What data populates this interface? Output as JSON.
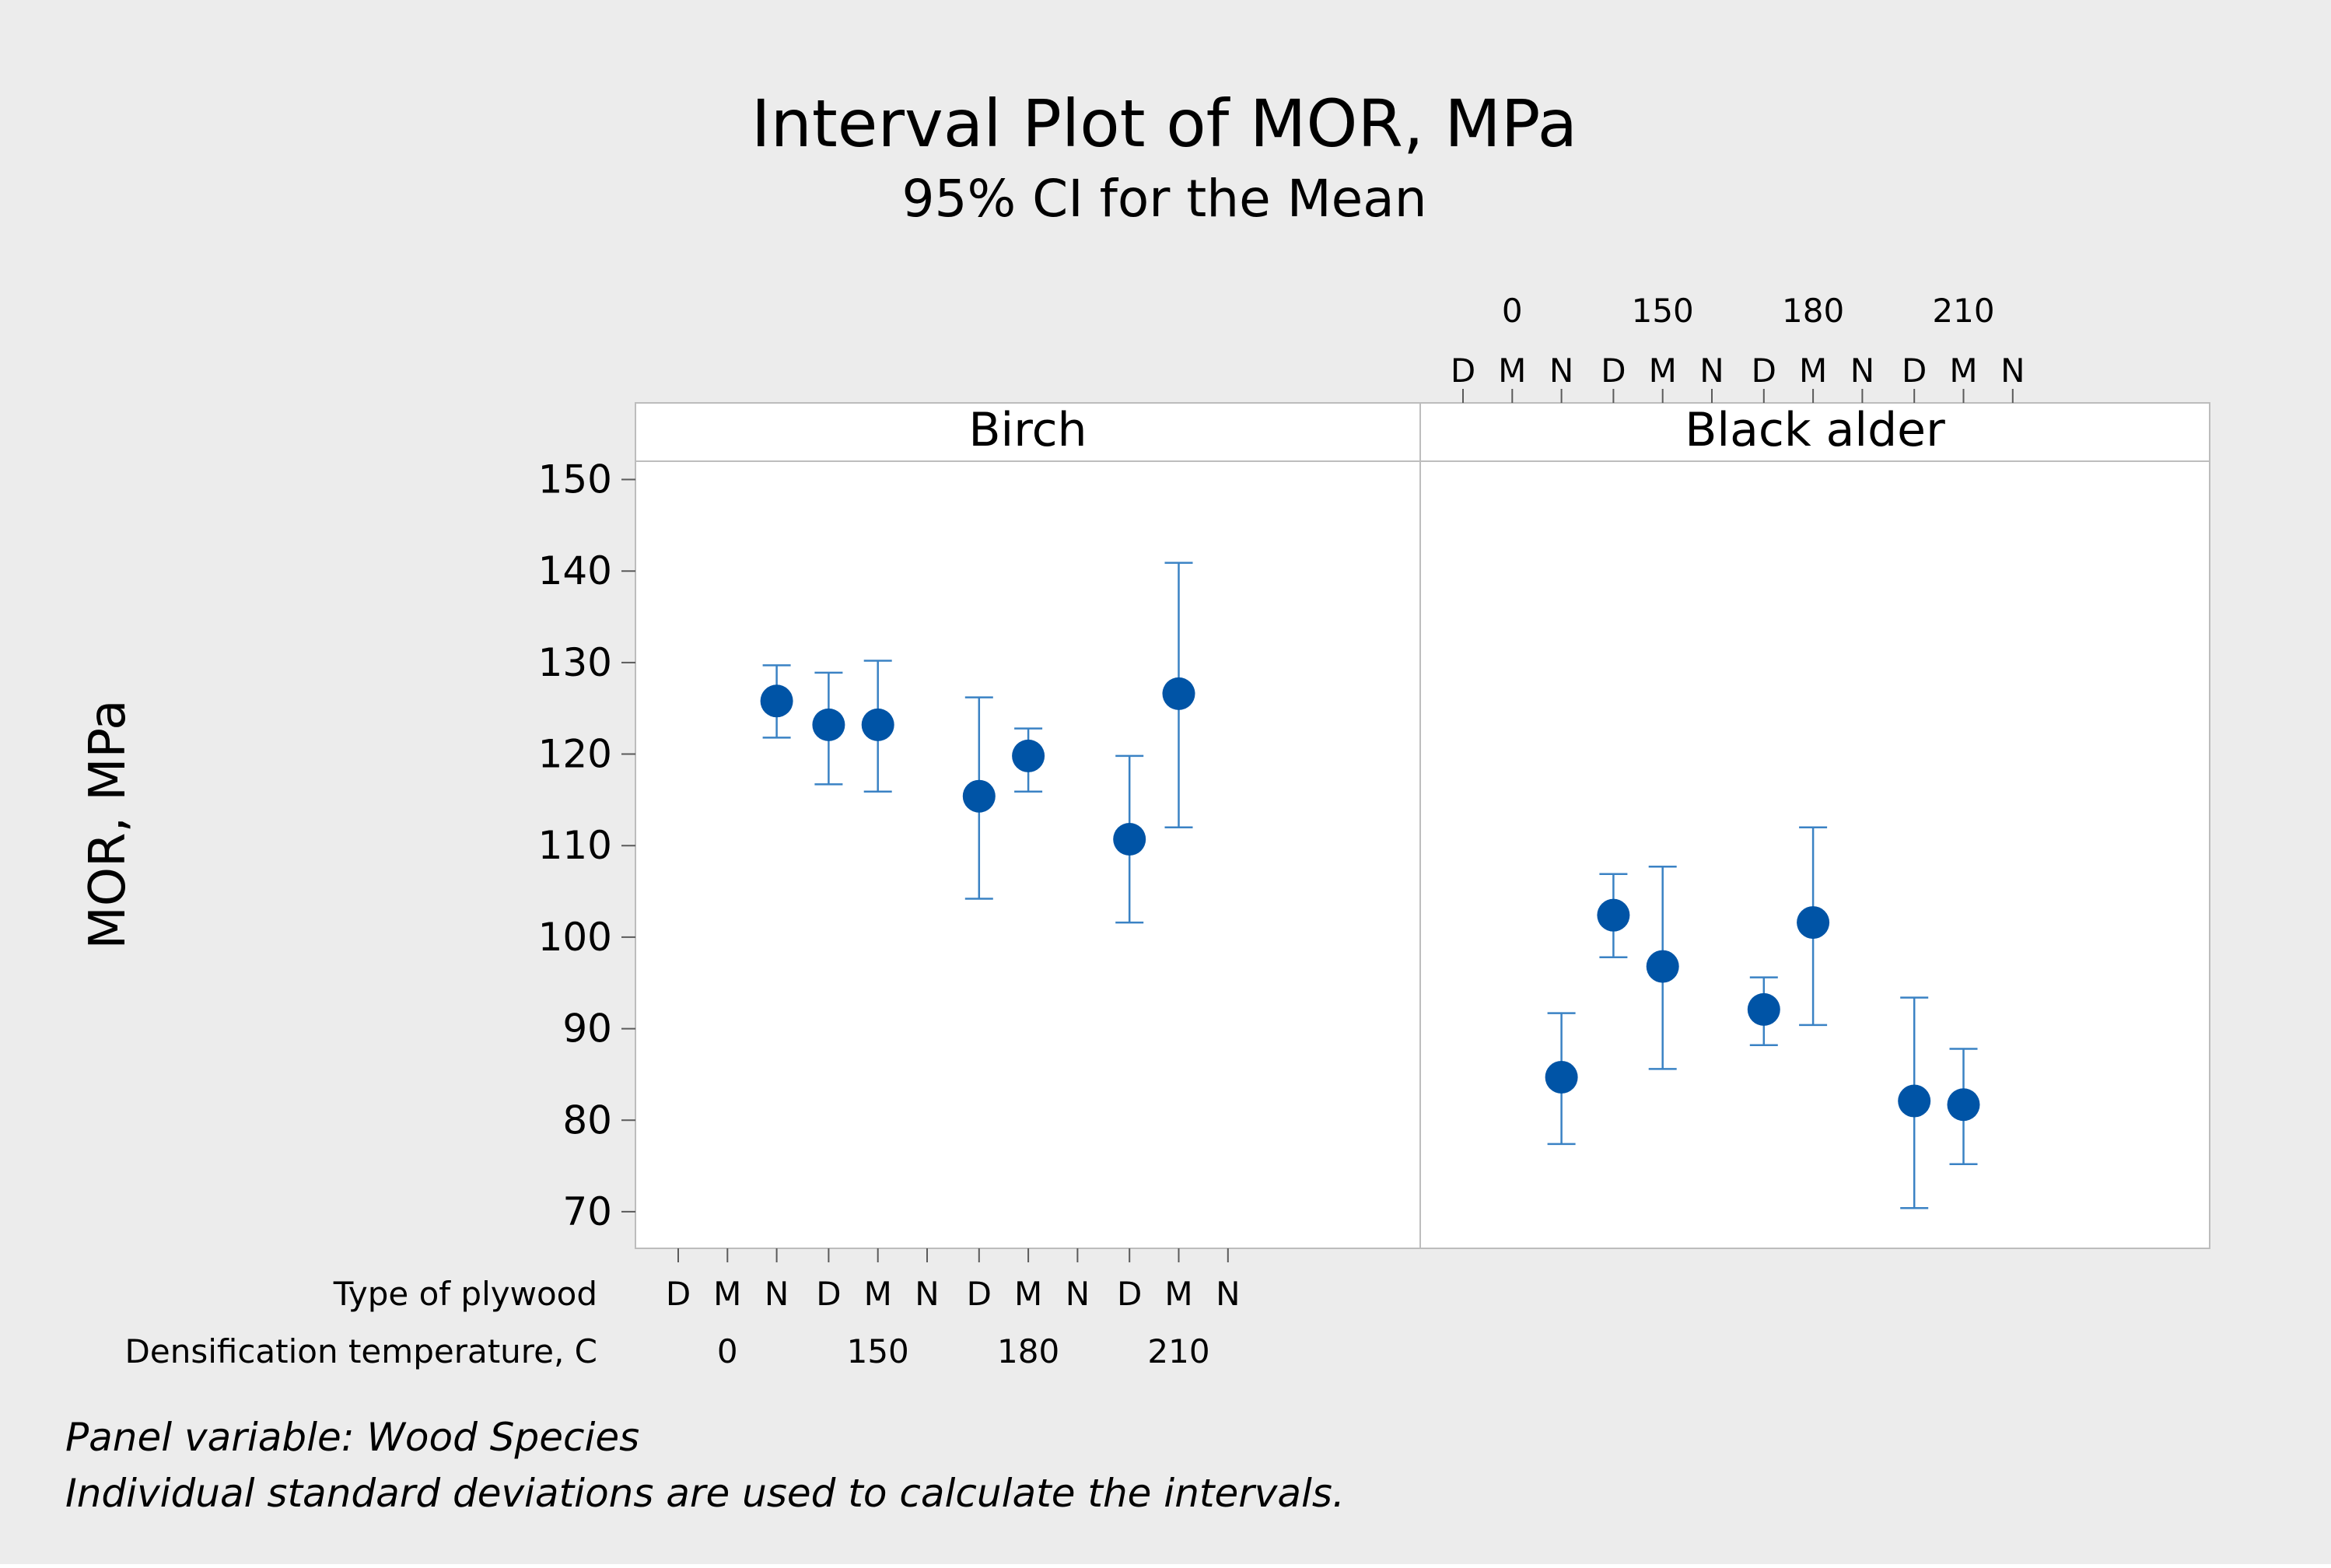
{
  "chart_data": {
    "type": "interval",
    "title": "Interval Plot of MOR, MPa",
    "subtitle": "95% CI for the Mean",
    "ylabel": "MOR, MPa",
    "ylim": [
      66,
      152
    ],
    "yticks": [
      70,
      80,
      90,
      100,
      110,
      120,
      130,
      140,
      150
    ],
    "panel_variable_note": "Panel variable: Wood Species",
    "interval_note": "Individual standard deviations are used to calculate the intervals.",
    "row_labels": {
      "type": "Type of plywood",
      "temperature": "Densification temperature, C"
    },
    "temperatures": [
      "0",
      "150",
      "180",
      "210"
    ],
    "types": [
      "D",
      "M",
      "N"
    ],
    "panels": [
      {
        "name": "Birch",
        "points": [
          {
            "temp": "0",
            "type": "N",
            "mean": 125.8,
            "lower": 121.8,
            "upper": 129.7
          },
          {
            "temp": "150",
            "type": "D",
            "mean": 123.2,
            "lower": 116.7,
            "upper": 128.9
          },
          {
            "temp": "150",
            "type": "M",
            "mean": 123.2,
            "lower": 115.9,
            "upper": 130.2
          },
          {
            "temp": "180",
            "type": "D",
            "mean": 115.4,
            "lower": 104.2,
            "upper": 126.2
          },
          {
            "temp": "180",
            "type": "M",
            "mean": 119.8,
            "lower": 115.9,
            "upper": 122.8
          },
          {
            "temp": "210",
            "type": "D",
            "mean": 110.7,
            "lower": 101.6,
            "upper": 119.8
          },
          {
            "temp": "210",
            "type": "M",
            "mean": 126.6,
            "lower": 112.0,
            "upper": 140.9
          }
        ]
      },
      {
        "name": "Black alder",
        "points": [
          {
            "temp": "0",
            "type": "N",
            "mean": 84.7,
            "lower": 77.4,
            "upper": 91.7
          },
          {
            "temp": "150",
            "type": "D",
            "mean": 102.4,
            "lower": 97.8,
            "upper": 106.9
          },
          {
            "temp": "150",
            "type": "M",
            "mean": 96.8,
            "lower": 85.6,
            "upper": 107.7
          },
          {
            "temp": "180",
            "type": "D",
            "mean": 92.1,
            "lower": 88.2,
            "upper": 95.6
          },
          {
            "temp": "180",
            "type": "M",
            "mean": 101.6,
            "lower": 90.4,
            "upper": 112.0
          },
          {
            "temp": "210",
            "type": "D",
            "mean": 82.1,
            "lower": 70.4,
            "upper": 93.4
          },
          {
            "temp": "210",
            "type": "M",
            "mean": 81.7,
            "lower": 75.2,
            "upper": 87.8
          }
        ]
      }
    ]
  },
  "colors": {
    "background": "#ececec",
    "plot": "#ffffff",
    "marker": "#0054a6",
    "whisker": "#3a82c4",
    "axis": "#5a5a5a",
    "gridline": "#bdbdbd"
  }
}
